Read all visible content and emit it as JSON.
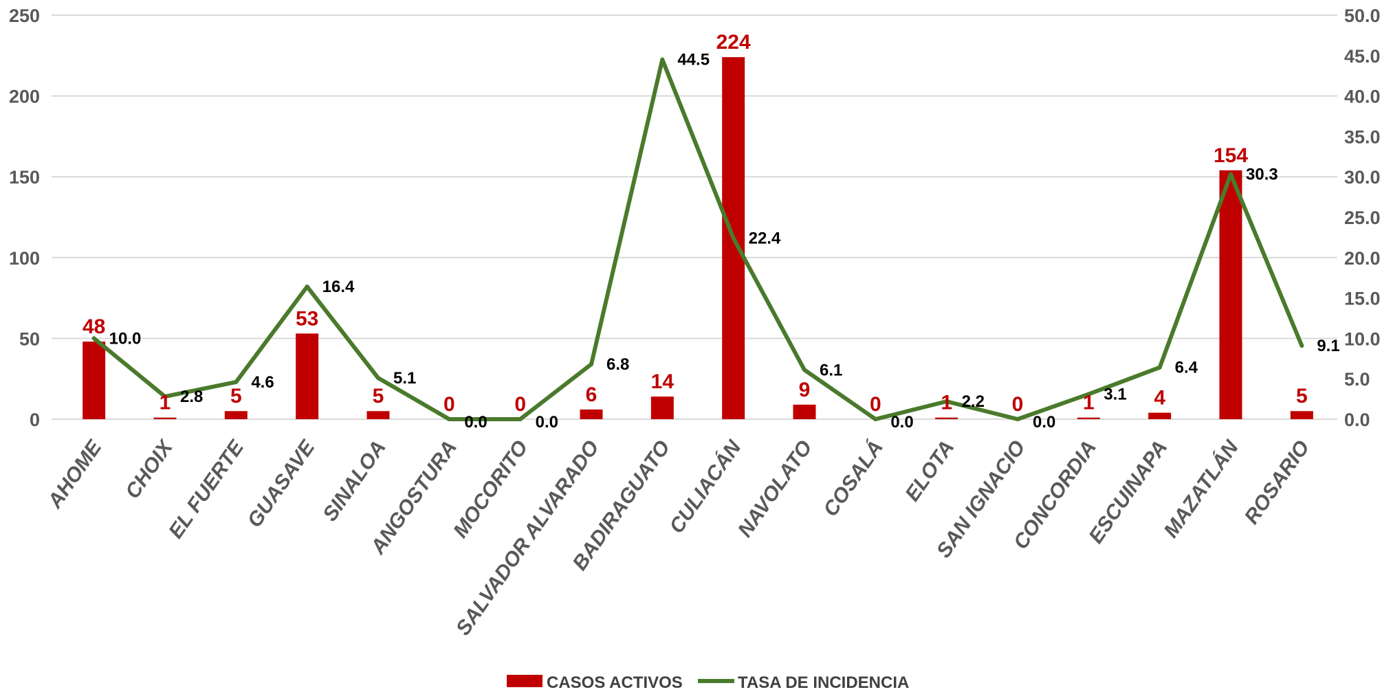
{
  "chart_data": {
    "type": "bar",
    "categories": [
      "AHOME",
      "CHOIX",
      "EL FUERTE",
      "GUASAVE",
      "SINALOA",
      "ANGOSTURA",
      "MOCORITO",
      "SALVADOR ALVARADO",
      "BADIRAGUATO",
      "CULIACÁN",
      "NAVOLATO",
      "COSALÁ",
      "ELOTA",
      "SAN IGNACIO",
      "CONCORDIA",
      "ESCUINAPA",
      "MAZATLÁN",
      "ROSARIO"
    ],
    "series": [
      {
        "name": "CASOS ACTIVOS",
        "type": "bar",
        "axis": "left",
        "color": "#C00000",
        "values": [
          48,
          1,
          5,
          53,
          5,
          0,
          0,
          6,
          14,
          224,
          9,
          0,
          1,
          0,
          1,
          4,
          154,
          5
        ]
      },
      {
        "name": "TASA DE INCIDENCIA",
        "type": "line",
        "axis": "right",
        "color": "#4A7A2C",
        "values": [
          10.0,
          2.8,
          4.6,
          16.4,
          5.1,
          0.0,
          0.0,
          6.8,
          44.5,
          22.4,
          6.1,
          0.0,
          2.2,
          0.0,
          3.1,
          6.4,
          30.3,
          9.1
        ]
      }
    ],
    "bar_labels": [
      "48",
      "1",
      "5",
      "53",
      "5",
      "0",
      "0",
      "6",
      "14",
      "224",
      "9",
      "0",
      "1",
      "0",
      "1",
      "4",
      "154",
      "5"
    ],
    "line_labels": [
      "10.0",
      "2.8",
      "4.6",
      "16.4",
      "5.1",
      "0.0",
      "0.0",
      "6.8",
      "44.5",
      "22.4",
      "6.1",
      "0.0",
      "2.2",
      "0.0",
      "3.1",
      "6.4",
      "30.3",
      "9.1"
    ],
    "y_left": {
      "ylim": [
        0,
        250
      ],
      "ticks": [
        "0",
        "50",
        "100",
        "150",
        "200",
        "250"
      ]
    },
    "y_right": {
      "ylim": [
        0,
        50
      ],
      "ticks": [
        "0.0",
        "5.0",
        "10.0",
        "15.0",
        "20.0",
        "25.0",
        "30.0",
        "35.0",
        "40.0",
        "45.0",
        "50.0"
      ]
    },
    "grid": true,
    "legend_position": "bottom-center",
    "label_colors": {
      "bar_label": "#C00000",
      "axis_text": "#595959",
      "grid": "#D9D9D9"
    }
  }
}
